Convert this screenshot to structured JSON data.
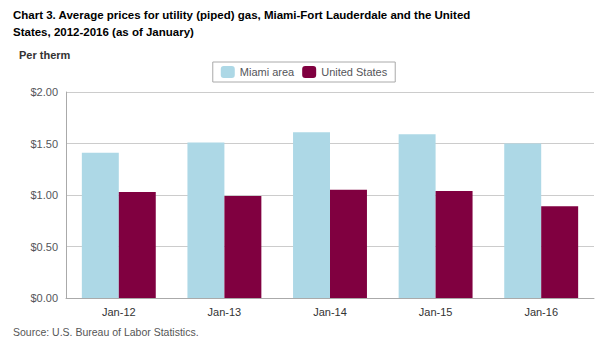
{
  "chart_data": {
    "type": "bar",
    "title": "Chart 3. Average prices for utility (piped) gas, Miami-Fort Lauderdale and the United",
    "subtitle": "States, 2012-2016 (as of January)",
    "ylabel": "Per therm",
    "annotations": [
      "Source: U.S. Bureau of Labor Statistics."
    ],
    "categories": [
      "Jan-12",
      "Jan-13",
      "Jan-14",
      "Jan-15",
      "Jan-16"
    ],
    "series": [
      {
        "name": "Miami area",
        "color": "#ADD8E6",
        "values": [
          1.41,
          1.51,
          1.61,
          1.59,
          1.5
        ]
      },
      {
        "name": "United States",
        "color": "#800040",
        "values": [
          1.03,
          0.99,
          1.05,
          1.04,
          0.89
        ]
      }
    ],
    "ylim": [
      0.0,
      2.0
    ],
    "yticks": [
      {
        "value": 0.0,
        "label": "$0.00"
      },
      {
        "value": 0.5,
        "label": "$0.50"
      },
      {
        "value": 1.0,
        "label": "$1.00"
      },
      {
        "value": 1.5,
        "label": "$1.50"
      },
      {
        "value": 2.0,
        "label": "$2.00"
      }
    ],
    "grid": true,
    "legend": "top"
  }
}
